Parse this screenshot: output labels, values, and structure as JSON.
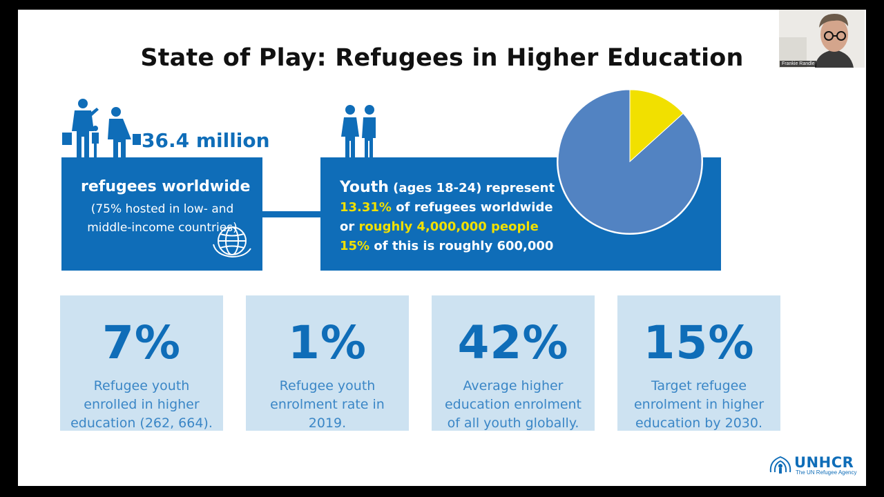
{
  "slide": {
    "title": "State of Play: Refugees in Higher Education",
    "big_number": "36.4 million",
    "left_box": {
      "heading": "refugees worldwide",
      "body": "(75% hosted in low- and middle-income countries)"
    },
    "right_box": {
      "line1_bold": "Youth",
      "line1_rest": " (ages 18-24) represent",
      "line2_highlight": "13.31%",
      "line2_rest": " of refugees worldwide",
      "line3_prefix": "or ",
      "line3_highlight": "roughly 4,000,000 people",
      "line4_highlight": "15%",
      "line4_rest": " of this is roughly 600,000"
    },
    "pie": {
      "share_percent": 13.31,
      "colors": {
        "share": "#f1e000",
        "rest": "#5283c2"
      }
    },
    "stats": [
      {
        "value": "7%",
        "desc": "Refugee youth enrolled in higher education (262, 664)."
      },
      {
        "value": "1%",
        "desc": "Refugee youth enrolment rate in 2019."
      },
      {
        "value": "42%",
        "desc": "Average higher education enrolment of all youth globally."
      },
      {
        "value": "15%",
        "desc": "Target refugee enrolment in higher education by 2030."
      }
    ],
    "logo": {
      "name": "UNHCR",
      "tagline": "The UN Refugee Agency"
    }
  },
  "video_tile": {
    "participant_name": "Frankie Randle"
  },
  "colors": {
    "brand_blue": "#0f6db8",
    "highlight_yellow": "#f1e000",
    "card_bg": "#cde2f1"
  }
}
